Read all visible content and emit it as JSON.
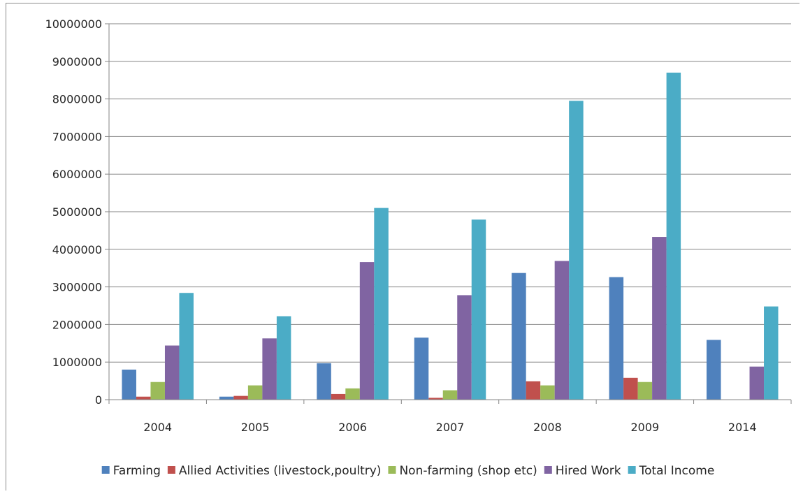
{
  "chart_data": {
    "type": "bar",
    "title": "",
    "xlabel": "",
    "ylabel": "",
    "categories": [
      "2004",
      "2005",
      "2006",
      "2007",
      "2008",
      "2009",
      "2014"
    ],
    "ylim": [
      0,
      10000000
    ],
    "yticks": [
      0,
      1000000,
      2000000,
      3000000,
      4000000,
      5000000,
      6000000,
      7000000,
      8000000,
      9000000,
      10000000
    ],
    "grid": true,
    "legend_position": "bottom",
    "series": [
      {
        "name": "Farming",
        "color": "#4f81bd",
        "values": [
          800000,
          80000,
          970000,
          1650000,
          3370000,
          3260000,
          1590000
        ]
      },
      {
        "name": "Allied Activities (livestock,poultry)",
        "color": "#c0504d",
        "values": [
          80000,
          100000,
          150000,
          50000,
          490000,
          580000,
          0
        ]
      },
      {
        "name": "Non-farming (shop etc)",
        "color": "#9bbb59",
        "values": [
          470000,
          380000,
          300000,
          250000,
          380000,
          470000,
          0
        ]
      },
      {
        "name": "Hired Work",
        "color": "#8064a2",
        "values": [
          1440000,
          1630000,
          3660000,
          2780000,
          3690000,
          4330000,
          880000
        ]
      },
      {
        "name": "Total Income",
        "color": "#4bacc6",
        "values": [
          2840000,
          2220000,
          5100000,
          4790000,
          7950000,
          8700000,
          2480000
        ]
      }
    ]
  }
}
